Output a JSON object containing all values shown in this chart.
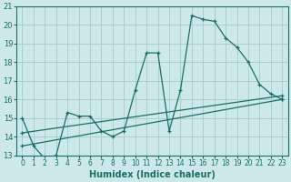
{
  "xlabel": "Humidex (Indice chaleur)",
  "ylabel": "",
  "bg_color": "#cce8e8",
  "grid_color": "#aacfcf",
  "line_color": "#1a6e6a",
  "xlim": [
    -0.5,
    23.5
  ],
  "ylim": [
    13,
    21
  ],
  "yticks": [
    13,
    14,
    15,
    16,
    17,
    18,
    19,
    20,
    21
  ],
  "xticks": [
    0,
    1,
    2,
    3,
    4,
    5,
    6,
    7,
    8,
    9,
    10,
    11,
    12,
    13,
    14,
    15,
    16,
    17,
    18,
    19,
    20,
    21,
    22,
    23
  ],
  "series1_x": [
    0,
    1,
    2,
    3,
    4,
    5,
    6,
    7,
    8,
    9,
    10,
    11,
    12,
    13,
    14,
    15,
    16,
    17,
    18,
    19,
    20,
    21,
    22,
    23
  ],
  "series1_y": [
    15.0,
    13.5,
    12.8,
    13.0,
    15.3,
    15.1,
    15.1,
    14.3,
    14.0,
    14.3,
    16.5,
    18.5,
    18.5,
    14.3,
    16.5,
    20.5,
    20.3,
    20.2,
    19.3,
    18.8,
    18.0,
    16.8,
    16.3,
    16.0
  ],
  "series2_x": [
    0,
    23
  ],
  "series2_y": [
    13.5,
    16.0
  ],
  "series3_x": [
    0,
    23
  ],
  "series3_y": [
    14.2,
    16.2
  ],
  "figsize": [
    3.2,
    2.0
  ],
  "dpi": 100
}
